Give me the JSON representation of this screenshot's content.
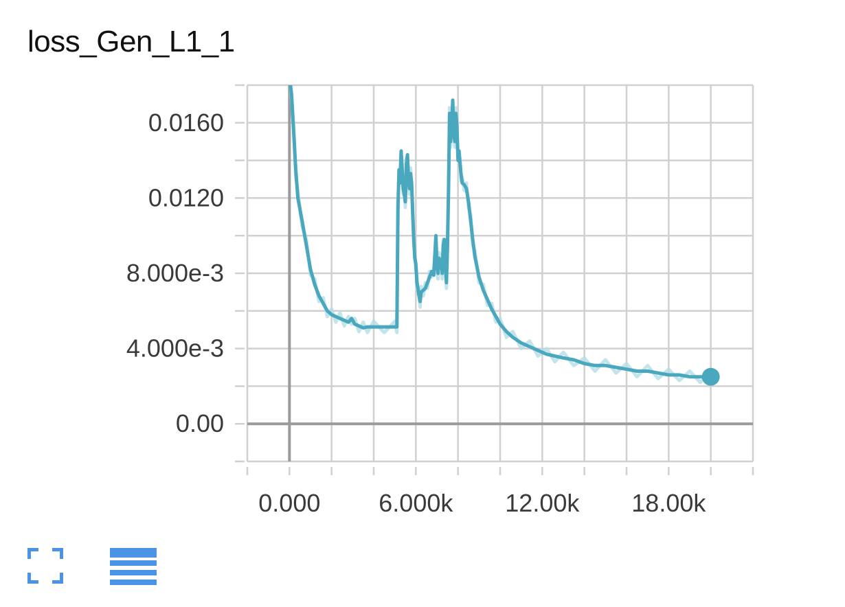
{
  "card": {
    "title": "loss_Gen_L1_1",
    "buttons": [
      {
        "name": "expand-icon",
        "label": ""
      },
      {
        "name": "data-table-icon",
        "label": ""
      }
    ]
  },
  "colors": {
    "series": "#4aa8be",
    "series_raw": "#b5dde6",
    "grid": "#d0d0d0",
    "axis": "#9a9a9a",
    "button": "#4a93e6"
  },
  "chart_data": {
    "type": "line",
    "title": "loss_Gen_L1_1",
    "xlabel": "",
    "ylabel": "",
    "xlim": [
      -2000,
      22000
    ],
    "ylim": [
      -0.002,
      0.018
    ],
    "x_ticks": [
      "0.000",
      "6.000k",
      "12.00k",
      "18.00k"
    ],
    "x_tick_values": [
      0,
      6000,
      12000,
      18000
    ],
    "y_ticks": [
      "0.00",
      "4.000e-3",
      "8.000e-3",
      "0.0120",
      "0.0160"
    ],
    "y_tick_values": [
      0,
      0.004,
      0.008,
      0.012,
      0.016
    ],
    "grid": true,
    "series": [
      {
        "smoothed": true,
        "points": [
          [
            0,
            0.0185
          ],
          [
            100,
            0.0175
          ],
          [
            200,
            0.0155
          ],
          [
            300,
            0.0135
          ],
          [
            400,
            0.012
          ],
          [
            600,
            0.0108
          ],
          [
            800,
            0.0095
          ],
          [
            1000,
            0.0082
          ],
          [
            1200,
            0.0074
          ],
          [
            1400,
            0.0068
          ],
          [
            1600,
            0.0064
          ],
          [
            1800,
            0.006
          ],
          [
            2000,
            0.0058
          ],
          [
            2200,
            0.0057
          ],
          [
            2400,
            0.0056
          ],
          [
            2600,
            0.0055
          ],
          [
            2800,
            0.0054
          ],
          [
            2950,
            0.0056
          ],
          [
            3100,
            0.0053
          ],
          [
            3300,
            0.0052
          ],
          [
            3500,
            0.0051
          ],
          [
            3700,
            0.00515
          ],
          [
            4000,
            0.00515
          ],
          [
            4500,
            0.00515
          ],
          [
            5000,
            0.00515
          ],
          [
            5100,
            0.00515
          ],
          [
            5150,
            0.0115
          ],
          [
            5200,
            0.0135
          ],
          [
            5250,
            0.0128
          ],
          [
            5300,
            0.0145
          ],
          [
            5350,
            0.0135
          ],
          [
            5400,
            0.0125
          ],
          [
            5450,
            0.0122
          ],
          [
            5500,
            0.0118
          ],
          [
            5550,
            0.0138
          ],
          [
            5600,
            0.0143
          ],
          [
            5650,
            0.013
          ],
          [
            5700,
            0.0125
          ],
          [
            5750,
            0.0133
          ],
          [
            5800,
            0.0128
          ],
          [
            5850,
            0.0112
          ],
          [
            5900,
            0.0098
          ],
          [
            5950,
            0.0088
          ],
          [
            6000,
            0.0085
          ],
          [
            6050,
            0.0075
          ],
          [
            6100,
            0.0072
          ],
          [
            6150,
            0.0068
          ],
          [
            6200,
            0.0065
          ],
          [
            6250,
            0.007
          ],
          [
            6350,
            0.0071
          ],
          [
            6450,
            0.0072
          ],
          [
            6550,
            0.0075
          ],
          [
            6650,
            0.0078
          ],
          [
            6750,
            0.0081
          ],
          [
            6850,
            0.0079
          ],
          [
            6950,
            0.01
          ],
          [
            7000,
            0.0085
          ],
          [
            7050,
            0.008
          ],
          [
            7100,
            0.0088
          ],
          [
            7150,
            0.0083
          ],
          [
            7200,
            0.0087
          ],
          [
            7250,
            0.008
          ],
          [
            7300,
            0.0095
          ],
          [
            7350,
            0.0098
          ],
          [
            7400,
            0.0085
          ],
          [
            7450,
            0.0075
          ],
          [
            7500,
            0.0093
          ],
          [
            7550,
            0.0125
          ],
          [
            7600,
            0.0165
          ],
          [
            7650,
            0.015
          ],
          [
            7700,
            0.0158
          ],
          [
            7750,
            0.0172
          ],
          [
            7800,
            0.0155
          ],
          [
            7850,
            0.015
          ],
          [
            7900,
            0.0165
          ],
          [
            7950,
            0.0158
          ],
          [
            8000,
            0.014
          ],
          [
            8050,
            0.0145
          ],
          [
            8100,
            0.0138
          ],
          [
            8150,
            0.0132
          ],
          [
            8200,
            0.0128
          ],
          [
            8300,
            0.0127
          ],
          [
            8400,
            0.0125
          ],
          [
            8500,
            0.0118
          ],
          [
            8600,
            0.0108
          ],
          [
            8700,
            0.0098
          ],
          [
            8800,
            0.0089
          ],
          [
            9000,
            0.0078
          ],
          [
            9200,
            0.0071
          ],
          [
            9400,
            0.0066
          ],
          [
            9600,
            0.0061
          ],
          [
            9800,
            0.0057
          ],
          [
            10000,
            0.0053
          ],
          [
            10300,
            0.0049
          ],
          [
            10600,
            0.0046
          ],
          [
            11000,
            0.0043
          ],
          [
            11400,
            0.0041
          ],
          [
            11800,
            0.0039
          ],
          [
            12200,
            0.0037
          ],
          [
            12600,
            0.0036
          ],
          [
            13000,
            0.0035
          ],
          [
            13500,
            0.0034
          ],
          [
            14000,
            0.0032
          ],
          [
            14500,
            0.0031
          ],
          [
            15000,
            0.0031
          ],
          [
            15500,
            0.003
          ],
          [
            16000,
            0.0029
          ],
          [
            16500,
            0.0028
          ],
          [
            17000,
            0.0028
          ],
          [
            17500,
            0.0027
          ],
          [
            18000,
            0.0026
          ],
          [
            18500,
            0.0026
          ],
          [
            19000,
            0.0025
          ],
          [
            19500,
            0.0025
          ],
          [
            20000,
            0.0025
          ]
        ]
      }
    ],
    "last_point": [
      20000,
      0.0025
    ]
  }
}
